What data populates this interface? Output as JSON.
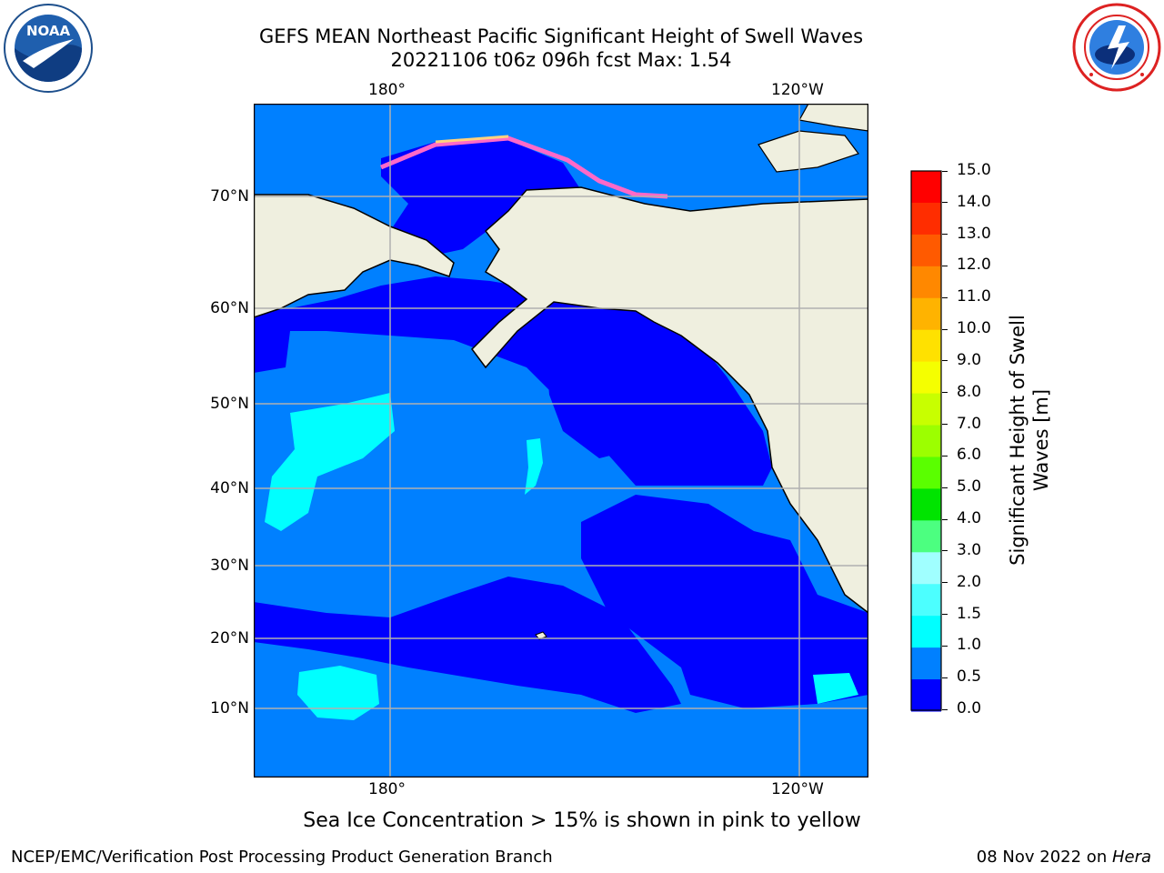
{
  "header": {
    "title_line1": "GEFS MEAN Northeast Pacific Significant Height of Swell Waves",
    "title_line2": "20221106 t06z 096h fcst   Max: 1.54"
  },
  "logos": {
    "left": "NOAA",
    "left_ring": "NATIONAL OCEANIC AND ATMOSPHERIC ADMINISTRATION · U.S. DEPARTMENT OF COMMERCE",
    "right_ring": "NATIONAL WEATHER SERVICE"
  },
  "map": {
    "lon_labels": [
      "180°",
      "120°W"
    ],
    "lat_labels": [
      "70°N",
      "60°N",
      "50°N",
      "40°N",
      "30°N",
      "20°N",
      "10°N"
    ],
    "colors": {
      "land": "#efefdf",
      "sea_low": "#0000ff",
      "sea_mid": "#0080ff",
      "sea_cyan": "#00ffff",
      "grid": "#b0b0b0"
    }
  },
  "colorbar": {
    "title": "Significant Height of Swell Waves [m]",
    "ticks": [
      "15.0",
      "14.0",
      "13.0",
      "12.0",
      "11.0",
      "10.0",
      "9.0",
      "8.0",
      "7.0",
      "6.0",
      "5.0",
      "4.0",
      "3.0",
      "2.0",
      "1.5",
      "1.0",
      "0.5",
      "0.0"
    ],
    "colors": [
      "#ff0000",
      "#ff2d00",
      "#ff5a00",
      "#ff8800",
      "#ffb300",
      "#ffe100",
      "#f5ff00",
      "#c8ff00",
      "#9cff00",
      "#5aff00",
      "#00e400",
      "#4cff80",
      "#a0ffff",
      "#4cffff",
      "#00ffff",
      "#0080ff",
      "#0000ff"
    ]
  },
  "notes": {
    "ice_note": "Sea Ice Concentration > 15% is shown in pink to yellow",
    "credit": "NCEP/EMC/Verification Post Processing Product Generation Branch",
    "date": "08 Nov 2022 on ",
    "machine": "Hera"
  }
}
